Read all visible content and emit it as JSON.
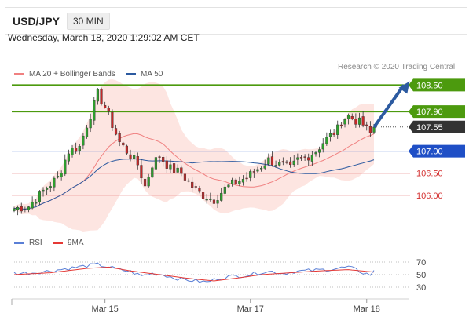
{
  "header": {
    "pair": "USD/JPY",
    "timeframe": "30 MIN"
  },
  "datetime": "Wednesday, March 18, 2020 1:29:02 AM CET",
  "legend": {
    "ma20_label": "MA 20 + Bollinger Bands",
    "ma50_label": "MA 50",
    "credit": "Research © 2020 Trading Central"
  },
  "rsi_legend": {
    "rsi_label": "RSI",
    "ma_label": "9MA"
  },
  "colors": {
    "ma20": "#f08080",
    "ma50": "#2c5aa0",
    "bands": "#fde0dc",
    "bull": "#2e9e2e",
    "bear": "#c62828",
    "resistance": "#4c9a0e",
    "pivot": "#1f4fc6",
    "support": "#e57373",
    "arrow": "#2c5aa0",
    "rsi": "#5a7fd6",
    "rsi_ma": "#e53935"
  },
  "chart_data": [
    {
      "type": "candlestick",
      "x_tick_labels": [
        "Mar 15",
        "Mar 17",
        "Mar 18"
      ],
      "x_ticks": [
        25,
        65,
        97
      ],
      "n_bars": 100,
      "ylim": [
        105.48,
        108.65
      ],
      "price_levels": [
        {
          "label": "108.50",
          "value": 108.5,
          "role": "resistance"
        },
        {
          "label": "107.90",
          "value": 107.9,
          "role": "resistance"
        },
        {
          "label": "107.55",
          "value": 107.55,
          "role": "last"
        },
        {
          "label": "107.00",
          "value": 107.0,
          "role": "pivot"
        },
        {
          "label": "106.50",
          "value": 106.5,
          "role": "support"
        },
        {
          "label": "106.00",
          "value": 106.0,
          "role": "support"
        }
      ],
      "close_anchors": [
        [
          0,
          105.7
        ],
        [
          4,
          105.75
        ],
        [
          8,
          106.1
        ],
        [
          12,
          106.4
        ],
        [
          15,
          107.0
        ],
        [
          18,
          107.1
        ],
        [
          20,
          107.6
        ],
        [
          22,
          108.05
        ],
        [
          23,
          108.3
        ],
        [
          25,
          108.0
        ],
        [
          27,
          107.6
        ],
        [
          29,
          107.2
        ],
        [
          31,
          107.0
        ],
        [
          34,
          106.7
        ],
        [
          36,
          106.2
        ],
        [
          38,
          106.7
        ],
        [
          40,
          106.9
        ],
        [
          43,
          106.6
        ],
        [
          46,
          106.5
        ],
        [
          49,
          106.2
        ],
        [
          52,
          106.0
        ],
        [
          55,
          105.9
        ],
        [
          58,
          106.15
        ],
        [
          61,
          106.3
        ],
        [
          64,
          106.4
        ],
        [
          67,
          106.6
        ],
        [
          70,
          106.8
        ],
        [
          73,
          106.7
        ],
        [
          76,
          106.6
        ],
        [
          78,
          106.8
        ],
        [
          80,
          106.85
        ],
        [
          83,
          107.0
        ],
        [
          85,
          107.2
        ],
        [
          87,
          107.35
        ],
        [
          89,
          107.5
        ],
        [
          90,
          107.7
        ],
        [
          92,
          107.8
        ],
        [
          94,
          107.7
        ],
        [
          96,
          107.6
        ],
        [
          98,
          107.4
        ],
        [
          99,
          107.55
        ]
      ],
      "forecast_target": 108.5
    },
    {
      "type": "line",
      "title": "RSI",
      "ylim": [
        20,
        80
      ],
      "y_tick_labels": [
        "70",
        "50",
        "30"
      ],
      "y_ticks": [
        70,
        50,
        30
      ],
      "series": [
        {
          "name": "RSI",
          "anchors": [
            [
              0,
              52
            ],
            [
              5,
              53
            ],
            [
              10,
              56
            ],
            [
              15,
              60
            ],
            [
              20,
              64
            ],
            [
              23,
              66
            ],
            [
              26,
              62
            ],
            [
              29,
              58
            ],
            [
              32,
              55
            ],
            [
              35,
              48
            ],
            [
              38,
              52
            ],
            [
              41,
              50
            ],
            [
              44,
              45
            ],
            [
              47,
              42
            ],
            [
              50,
              40
            ],
            [
              53,
              38
            ],
            [
              56,
              44
            ],
            [
              59,
              47
            ],
            [
              62,
              48
            ],
            [
              65,
              50
            ],
            [
              68,
              54
            ],
            [
              71,
              55
            ],
            [
              74,
              52
            ],
            [
              77,
              55
            ],
            [
              80,
              56
            ],
            [
              83,
              57
            ],
            [
              86,
              58
            ],
            [
              89,
              60
            ],
            [
              92,
              62
            ],
            [
              94,
              58
            ],
            [
              96,
              53
            ],
            [
              98,
              50
            ],
            [
              99,
              55
            ]
          ]
        },
        {
          "name": "9MA",
          "anchors": [
            [
              0,
              50
            ],
            [
              10,
              53
            ],
            [
              20,
              60
            ],
            [
              26,
              62
            ],
            [
              32,
              56
            ],
            [
              40,
              50
            ],
            [
              48,
              44
            ],
            [
              55,
              40
            ],
            [
              62,
              45
            ],
            [
              68,
              50
            ],
            [
              76,
              53
            ],
            [
              84,
              56
            ],
            [
              92,
              58
            ],
            [
              99,
              54
            ]
          ]
        }
      ]
    }
  ]
}
